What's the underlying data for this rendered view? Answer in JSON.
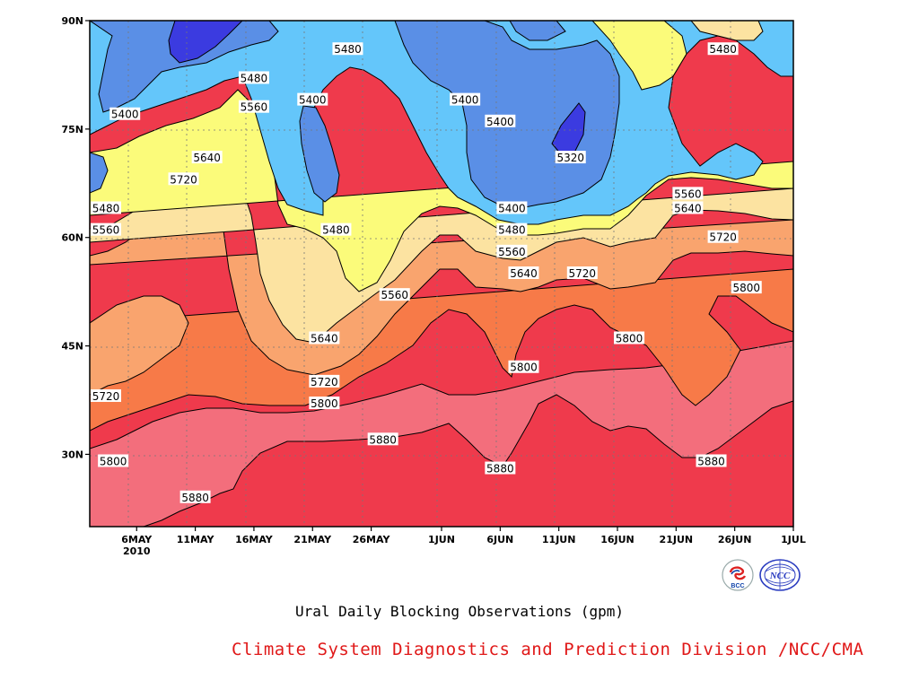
{
  "chart_data": {
    "type": "heatmap",
    "title": "Ural Daily Blocking Observations (gpm)",
    "credit": "Climate System Diagnostics and Prediction Division /NCC/CMA",
    "x_axis": {
      "ticks": [
        "6MAY",
        "11MAY",
        "16MAY",
        "21MAY",
        "26MAY",
        "1JUN",
        "6JUN",
        "11JUN",
        "16JUN",
        "21JUN",
        "26JUN",
        "1JUL"
      ],
      "year_label": "2010",
      "range": [
        "2010-05-02",
        "2010-07-01"
      ]
    },
    "y_axis": {
      "ticks": [
        "30N",
        "45N",
        "60N",
        "75N",
        "90N"
      ],
      "range": [
        20,
        90
      ]
    },
    "contour_levels": [
      5320,
      5400,
      5480,
      5560,
      5640,
      5720,
      5800,
      5880
    ],
    "level_colors": {
      "below_5320": "#3b3be0",
      "5320_5400": "#5a8fe6",
      "5400_5480": "#64c6fa",
      "5480_5560": "#fbfb7a",
      "5560_5640": "#fce3a1",
      "5640_5720": "#f9a46e",
      "5720_5800": "#f77a48",
      "5800_5880": "#f36e7c",
      "above_5880": "#ef3a4c"
    },
    "contour_labels": [
      {
        "value": "5480",
        "date": "2010-05-16",
        "lat": 82
      },
      {
        "value": "5480",
        "date": "2010-05-24",
        "lat": 86
      },
      {
        "value": "5480",
        "date": "2010-06-25",
        "lat": 86
      },
      {
        "value": "5400",
        "date": "2010-05-05",
        "lat": 77
      },
      {
        "value": "5400",
        "date": "2010-05-21",
        "lat": 79
      },
      {
        "value": "5400",
        "date": "2010-06-03",
        "lat": 79
      },
      {
        "value": "5400",
        "date": "2010-06-06",
        "lat": 76
      },
      {
        "value": "5560",
        "date": "2010-05-16",
        "lat": 78
      },
      {
        "value": "5640",
        "date": "2010-05-12",
        "lat": 71
      },
      {
        "value": "5320",
        "date": "2010-06-12",
        "lat": 71
      },
      {
        "value": "5720",
        "date": "2010-05-10",
        "lat": 68
      },
      {
        "value": "5560",
        "date": "2010-06-22",
        "lat": 66
      },
      {
        "value": "5480",
        "date": "2010-05-03",
        "lat": 64
      },
      {
        "value": "5400",
        "date": "2010-06-07",
        "lat": 64
      },
      {
        "value": "5640",
        "date": "2010-06-22",
        "lat": 64
      },
      {
        "value": "5480",
        "date": "2010-05-23",
        "lat": 61
      },
      {
        "value": "5560",
        "date": "2010-05-03",
        "lat": 61
      },
      {
        "value": "5480",
        "date": "2010-06-07",
        "lat": 61
      },
      {
        "value": "5720",
        "date": "2010-06-25",
        "lat": 60
      },
      {
        "value": "5560",
        "date": "2010-06-07",
        "lat": 58
      },
      {
        "value": "5640",
        "date": "2010-06-08",
        "lat": 55
      },
      {
        "value": "5720",
        "date": "2010-06-13",
        "lat": 55
      },
      {
        "value": "5560",
        "date": "2010-05-28",
        "lat": 52
      },
      {
        "value": "5800",
        "date": "2010-06-27",
        "lat": 53
      },
      {
        "value": "5640",
        "date": "2010-05-22",
        "lat": 46
      },
      {
        "value": "5800",
        "date": "2010-06-17",
        "lat": 46
      },
      {
        "value": "5800",
        "date": "2010-06-08",
        "lat": 42
      },
      {
        "value": "5720",
        "date": "2010-05-22",
        "lat": 40
      },
      {
        "value": "5720",
        "date": "2010-05-03",
        "lat": 38
      },
      {
        "value": "5800",
        "date": "2010-05-22",
        "lat": 37
      },
      {
        "value": "5880",
        "date": "2010-05-27",
        "lat": 32
      },
      {
        "value": "5800",
        "date": "2010-05-04",
        "lat": 29
      },
      {
        "value": "5880",
        "date": "2010-06-06",
        "lat": 28
      },
      {
        "value": "5880",
        "date": "2010-06-24",
        "lat": 29
      },
      {
        "value": "5880",
        "date": "2010-05-11",
        "lat": 24
      }
    ]
  },
  "logos": {
    "left": {
      "name": "bcc-logo",
      "text": "BCC"
    },
    "right": {
      "name": "ncc-logo",
      "text": "NCC"
    }
  }
}
